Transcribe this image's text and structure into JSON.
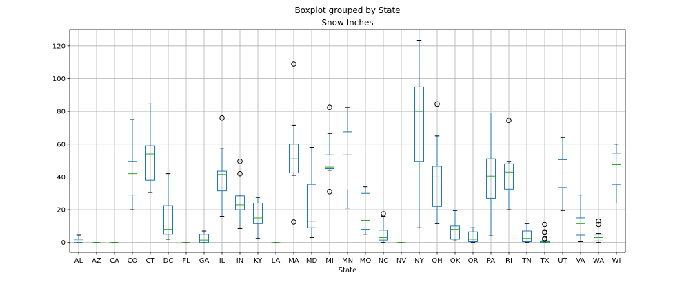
{
  "chart_data": {
    "type": "boxplot",
    "suptitle": "Boxplot grouped by State",
    "title": "Snow Inches",
    "xlabel": "State",
    "ylabel": "",
    "ylim": [
      -6,
      130
    ],
    "yticks": [
      0,
      20,
      40,
      60,
      80,
      100,
      120
    ],
    "grid": true,
    "colors": {
      "box": "#1f77b4",
      "median": "#2ca02c",
      "whisker": "#1f77b4",
      "cap": "#000000",
      "flier": "#000000",
      "grid": "#b0b0b0"
    },
    "categories": [
      "AL",
      "AZ",
      "CA",
      "CO",
      "CT",
      "DC",
      "FL",
      "GA",
      "IL",
      "IN",
      "KY",
      "LA",
      "MA",
      "MD",
      "MI",
      "MN",
      "MO",
      "NC",
      "NV",
      "NY",
      "OH",
      "OK",
      "OR",
      "PA",
      "RI",
      "TN",
      "TX",
      "UT",
      "VA",
      "WA",
      "WI"
    ],
    "boxes": [
      {
        "state": "AL",
        "whislo": 0,
        "q1": 0,
        "med": 1,
        "q3": 2,
        "whishi": 4.5,
        "fliers": []
      },
      {
        "state": "AZ",
        "whislo": 0,
        "q1": 0,
        "med": 0,
        "q3": 0,
        "whishi": 0,
        "fliers": []
      },
      {
        "state": "CA",
        "whislo": 0,
        "q1": 0,
        "med": 0,
        "q3": 0,
        "whishi": 0,
        "fliers": []
      },
      {
        "state": "CO",
        "whislo": 20,
        "q1": 29,
        "med": 42,
        "q3": 49.5,
        "whishi": 75,
        "fliers": []
      },
      {
        "state": "CT",
        "whislo": 30.5,
        "q1": 38,
        "med": 54,
        "q3": 59,
        "whishi": 84.5,
        "fliers": []
      },
      {
        "state": "DC",
        "whislo": 2,
        "q1": 5,
        "med": 8,
        "q3": 22.5,
        "whishi": 42,
        "fliers": []
      },
      {
        "state": "FL",
        "whislo": 0,
        "q1": 0,
        "med": 0,
        "q3": 0,
        "whishi": 0,
        "fliers": []
      },
      {
        "state": "GA",
        "whislo": 0,
        "q1": 0,
        "med": 1.5,
        "q3": 5,
        "whishi": 7,
        "fliers": []
      },
      {
        "state": "IL",
        "whislo": 16,
        "q1": 31.5,
        "med": 41.5,
        "q3": 43.5,
        "whishi": 57.5,
        "fliers": [
          76
        ]
      },
      {
        "state": "IN",
        "whislo": 8.5,
        "q1": 20,
        "med": 23,
        "q3": 28.5,
        "whishi": 29,
        "fliers": [
          42,
          49.5
        ]
      },
      {
        "state": "KY",
        "whislo": 2.5,
        "q1": 11.5,
        "med": 15,
        "q3": 24,
        "whishi": 27.5,
        "fliers": []
      },
      {
        "state": "LA",
        "whislo": 0,
        "q1": 0,
        "med": 0,
        "q3": 0,
        "whishi": 0,
        "fliers": []
      },
      {
        "state": "MA",
        "whislo": 41,
        "q1": 42.5,
        "med": 51,
        "q3": 60,
        "whishi": 71.5,
        "fliers": [
          12.5,
          109
        ]
      },
      {
        "state": "MD",
        "whislo": 3,
        "q1": 9,
        "med": 13,
        "q3": 35.5,
        "whishi": 58,
        "fliers": []
      },
      {
        "state": "MI",
        "whislo": 44,
        "q1": 45,
        "med": 46,
        "q3": 53.5,
        "whishi": 66.5,
        "fliers": [
          31,
          82.5
        ]
      },
      {
        "state": "MN",
        "whislo": 21,
        "q1": 32,
        "med": 53.5,
        "q3": 67.5,
        "whishi": 82.5,
        "fliers": []
      },
      {
        "state": "MO",
        "whislo": 5,
        "q1": 8,
        "med": 13.5,
        "q3": 30,
        "whishi": 34,
        "fliers": []
      },
      {
        "state": "NC",
        "whislo": 0,
        "q1": 1.5,
        "med": 3,
        "q3": 7.5,
        "whishi": 16,
        "fliers": [
          17.5
        ]
      },
      {
        "state": "NV",
        "whislo": 0,
        "q1": 0,
        "med": 0,
        "q3": 0,
        "whishi": 0,
        "fliers": []
      },
      {
        "state": "NY",
        "whislo": 9,
        "q1": 49.5,
        "med": 80,
        "q3": 95,
        "whishi": 123.5,
        "fliers": []
      },
      {
        "state": "OH",
        "whislo": 11.5,
        "q1": 22,
        "med": 40,
        "q3": 46.5,
        "whishi": 65,
        "fliers": [
          84.5
        ]
      },
      {
        "state": "OK",
        "whislo": 1,
        "q1": 2,
        "med": 8,
        "q3": 10,
        "whishi": 19.5,
        "fliers": []
      },
      {
        "state": "OR",
        "whislo": 0,
        "q1": 0.5,
        "med": 2,
        "q3": 6.5,
        "whishi": 9,
        "fliers": []
      },
      {
        "state": "PA",
        "whislo": 4,
        "q1": 27,
        "med": 40.5,
        "q3": 51,
        "whishi": 79,
        "fliers": []
      },
      {
        "state": "RI",
        "whislo": 20,
        "q1": 32.5,
        "med": 43,
        "q3": 48,
        "whishi": 49.5,
        "fliers": [
          74.5
        ]
      },
      {
        "state": "TN",
        "whislo": 0,
        "q1": 0.5,
        "med": 2.5,
        "q3": 7,
        "whishi": 11.5,
        "fliers": []
      },
      {
        "state": "TX",
        "whislo": 0,
        "q1": 0,
        "med": 0.5,
        "q3": 1,
        "whishi": 1,
        "fliers": [
          2,
          2.5,
          6,
          6.5,
          11
        ]
      },
      {
        "state": "UT",
        "whislo": 19.5,
        "q1": 33.5,
        "med": 42.5,
        "q3": 50.5,
        "whishi": 64,
        "fliers": []
      },
      {
        "state": "VA",
        "whislo": 0.5,
        "q1": 4.5,
        "med": 11.5,
        "q3": 15,
        "whishi": 29,
        "fliers": []
      },
      {
        "state": "WA",
        "whislo": 0,
        "q1": 1,
        "med": 3,
        "q3": 5,
        "whishi": 5.5,
        "fliers": [
          11,
          13
        ]
      },
      {
        "state": "WI",
        "whislo": 24,
        "q1": 35.5,
        "med": 47.5,
        "q3": 54.5,
        "whishi": 60,
        "fliers": []
      }
    ]
  }
}
